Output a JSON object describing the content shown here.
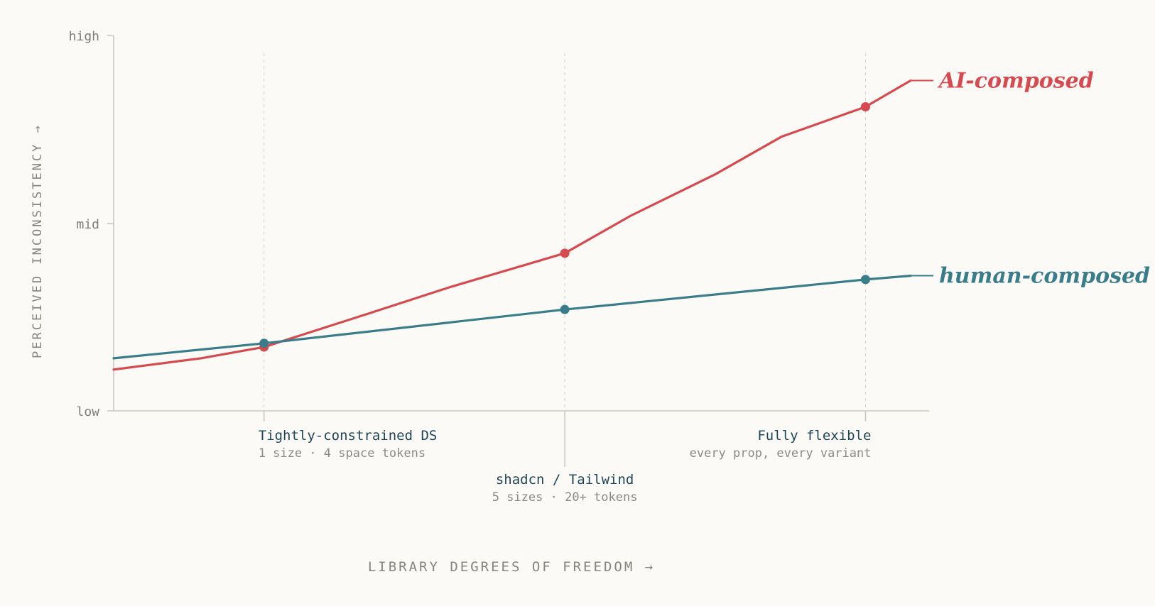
{
  "chart_data": {
    "type": "line",
    "xlabel": "LIBRARY DEGREES OF FREEDOM →",
    "ylabel": "PERCEIVED INCONSISTENCY →",
    "y_ticks": [
      "low",
      "mid",
      "high"
    ],
    "ylim": [
      0,
      1
    ],
    "xlim": [
      0,
      2.65
    ],
    "categories": [
      {
        "name": "Tightly-constrained DS",
        "sub": "1 size · 4 space tokens",
        "x": 0.5
      },
      {
        "name": "shadcn / Tailwind",
        "sub": "5 sizes · 20+ tokens",
        "x": 1.5
      },
      {
        "name": "Fully flexible",
        "sub": "every prop, every variant",
        "x": 2.5
      }
    ],
    "grid_vertical": true,
    "legend": "end-of-line labels",
    "series": [
      {
        "name": "AI-composed",
        "color": "#d64a4f",
        "x": [
          0,
          0.29,
          0.5,
          0.85,
          1.12,
          1.5,
          1.72,
          2.0,
          2.22,
          2.5,
          2.65
        ],
        "y": [
          0.11,
          0.14,
          0.17,
          0.26,
          0.33,
          0.42,
          0.52,
          0.63,
          0.73,
          0.81,
          0.88
        ],
        "markers": [
          [
            0.5,
            0.17
          ],
          [
            1.5,
            0.42
          ],
          [
            2.5,
            0.81
          ]
        ]
      },
      {
        "name": "human-composed",
        "color": "#3a7d8a",
        "x": [
          0,
          0.5,
          1.5,
          2.5,
          2.65
        ],
        "y": [
          0.14,
          0.18,
          0.27,
          0.35,
          0.36
        ],
        "markers": [
          [
            0.5,
            0.18
          ],
          [
            1.5,
            0.27
          ],
          [
            2.5,
            0.35
          ]
        ]
      }
    ]
  }
}
